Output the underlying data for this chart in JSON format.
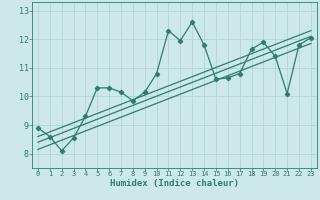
{
  "title": "",
  "xlabel": "Humidex (Indice chaleur)",
  "ylabel": "",
  "bg_color": "#cce8e8",
  "line_color": "#2e7d6e",
  "grid_color": "#b0d8d0",
  "xlim": [
    -0.5,
    23.5
  ],
  "ylim": [
    7.5,
    13.3
  ],
  "xticks": [
    0,
    1,
    2,
    3,
    4,
    5,
    6,
    7,
    8,
    9,
    10,
    11,
    12,
    13,
    14,
    15,
    16,
    17,
    18,
    19,
    20,
    21,
    22,
    23
  ],
  "yticks": [
    8,
    9,
    10,
    11,
    12,
    13
  ],
  "data_x": [
    0,
    1,
    2,
    3,
    4,
    5,
    6,
    7,
    8,
    9,
    10,
    11,
    12,
    13,
    14,
    15,
    16,
    17,
    18,
    19,
    20,
    21,
    22,
    23
  ],
  "data_y": [
    8.9,
    8.6,
    8.1,
    8.55,
    9.3,
    10.3,
    10.3,
    10.15,
    9.85,
    10.15,
    10.8,
    12.3,
    11.95,
    12.6,
    11.8,
    10.6,
    10.65,
    10.8,
    11.65,
    11.9,
    11.4,
    10.1,
    11.8,
    12.05
  ],
  "trend1_x": [
    0,
    23
  ],
  "trend1_y": [
    8.15,
    11.85
  ],
  "trend2_x": [
    0,
    23
  ],
  "trend2_y": [
    8.4,
    12.1
  ],
  "trend3_x": [
    0,
    23
  ],
  "trend3_y": [
    8.6,
    12.3
  ]
}
